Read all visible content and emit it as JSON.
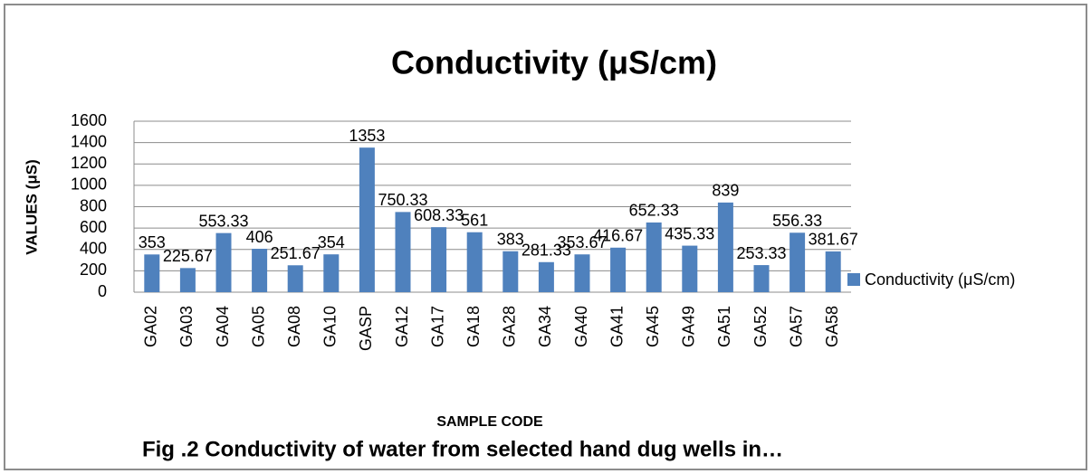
{
  "chart_data": {
    "type": "bar",
    "title": "Conductivity (μS/cm)",
    "x_label": "SAMPLE CODE",
    "y_label": "VALUES (μS)",
    "caption": "Fig .2 Conductivity of water from selected hand dug wells in…",
    "categories": [
      "GA02",
      "GA03",
      "GA04",
      "GA05",
      "GA08",
      "GA10",
      "GASP",
      "GA12",
      "GA17",
      "GA18",
      "GA28",
      "GA34",
      "GA40",
      "GA41",
      "GA45",
      "GA49",
      "GA51",
      "GA52",
      "GA57",
      "GA58"
    ],
    "series": [
      {
        "name": "Conductivity (μS/cm)",
        "color": "#4f81bd",
        "values": [
          353,
          225.67,
          553.33,
          406,
          251.67,
          354,
          1353,
          750.33,
          608.33,
          561,
          383,
          281.33,
          353.67,
          416.67,
          652.33,
          435.33,
          839,
          253.33,
          556.33,
          381.67
        ]
      }
    ],
    "ylim": [
      0,
      1600
    ],
    "yticks": [
      0,
      200,
      400,
      600,
      800,
      1000,
      1200,
      1400,
      1600
    ],
    "grid": true,
    "legend": "right"
  }
}
